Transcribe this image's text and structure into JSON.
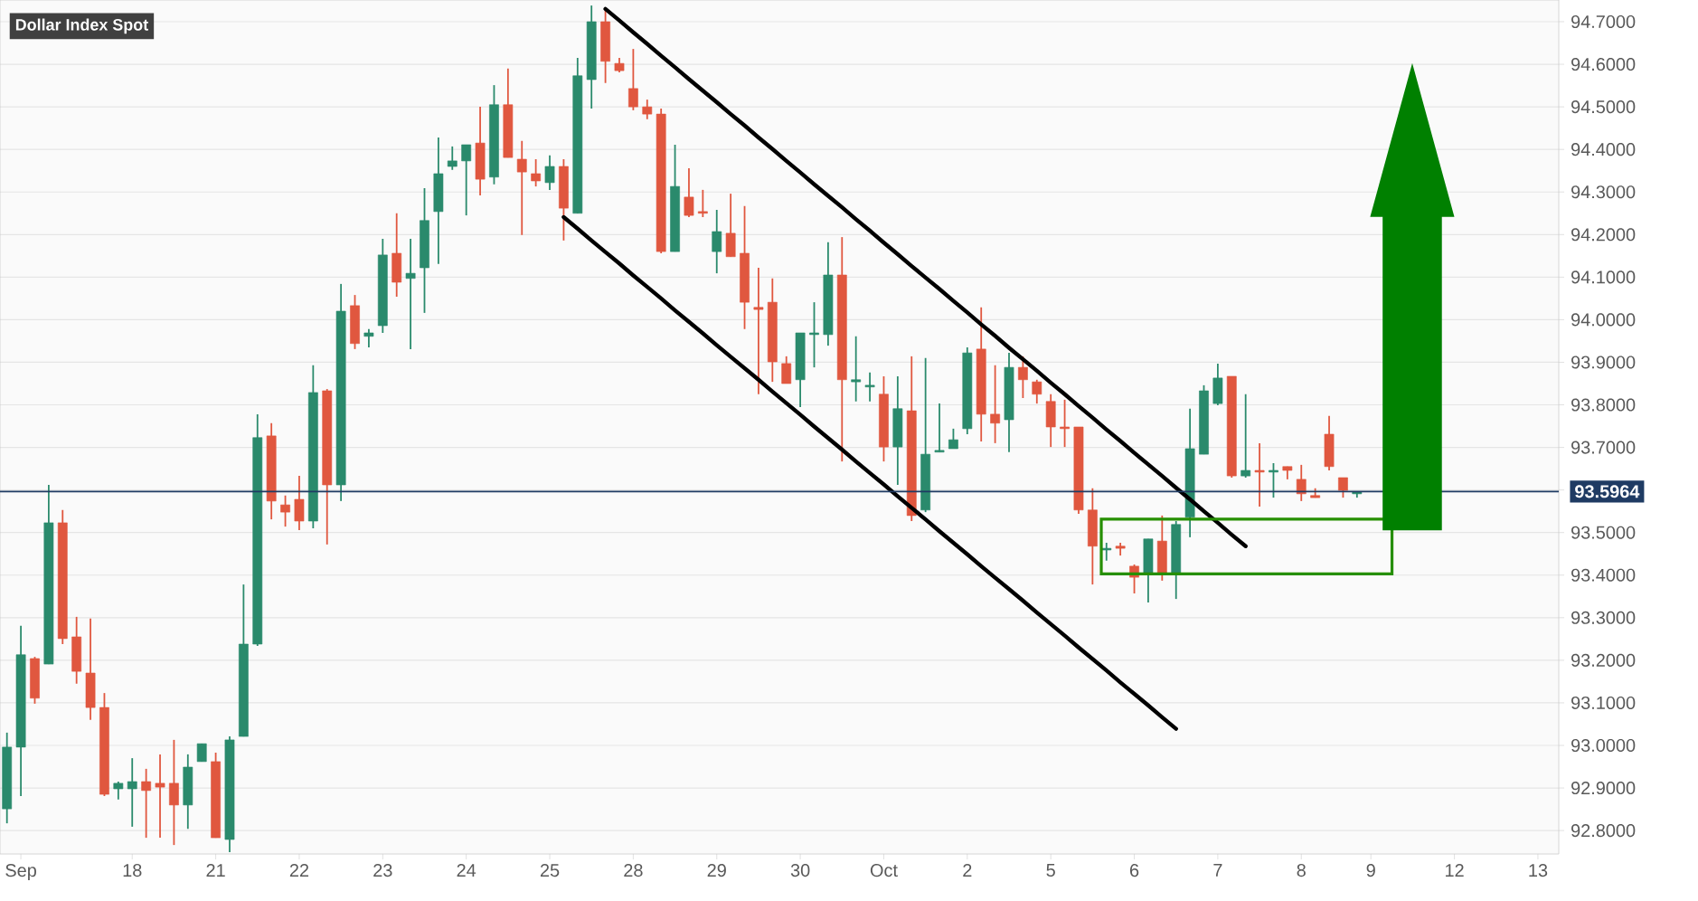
{
  "chart_data": {
    "type": "candlestick",
    "title": "Dollar Index Spot",
    "categories": [
      null,
      "Sep",
      null,
      null,
      null,
      null,
      null,
      null,
      null,
      "18",
      null,
      null,
      null,
      null,
      null,
      "21",
      null,
      null,
      null,
      null,
      null,
      "22",
      null,
      null,
      null,
      null,
      null,
      "23",
      null,
      null,
      null,
      null,
      null,
      "24",
      null,
      null,
      null,
      null,
      null,
      "25",
      null,
      null,
      null,
      null,
      null,
      "28",
      null,
      null,
      null,
      null,
      null,
      "29",
      null,
      null,
      null,
      null,
      null,
      "30",
      null,
      null,
      null,
      null,
      null,
      "Oct",
      null,
      null,
      null,
      null,
      null,
      "2",
      null,
      null,
      null,
      null,
      null,
      "5",
      null,
      null,
      null,
      null,
      null,
      "6",
      null,
      null,
      null,
      null,
      null,
      "7",
      null,
      null,
      null,
      null,
      null,
      "8",
      null,
      null,
      null,
      null,
      "9",
      null,
      null,
      null,
      null,
      null,
      "12",
      null,
      null,
      null,
      null,
      null,
      "13",
      null
    ],
    "ylim": [
      92.745,
      94.751
    ],
    "yticks": [
      {
        "value": 92.8,
        "label": "92.8000"
      },
      {
        "value": 92.9,
        "label": "92.9000"
      },
      {
        "value": 93.0,
        "label": "93.0000"
      },
      {
        "value": 93.1,
        "label": "93.1000"
      },
      {
        "value": 93.2,
        "label": "93.2000"
      },
      {
        "value": 93.3,
        "label": "93.3000"
      },
      {
        "value": 93.4,
        "label": "93.4000"
      },
      {
        "value": 93.5,
        "label": "93.5000"
      },
      {
        "value": 93.6,
        "label": null
      },
      {
        "value": 93.7,
        "label": "93.7000"
      },
      {
        "value": 93.8,
        "label": "93.8000"
      },
      {
        "value": 93.9,
        "label": "93.9000"
      },
      {
        "value": 94.0,
        "label": "94.0000"
      },
      {
        "value": 94.1,
        "label": "94.1000"
      },
      {
        "value": 94.2,
        "label": "94.2000"
      },
      {
        "value": 94.3,
        "label": "94.3000"
      },
      {
        "value": 94.4,
        "label": "94.4000"
      },
      {
        "value": 94.5,
        "label": "94.5000"
      },
      {
        "value": 94.6,
        "label": "94.6000"
      },
      {
        "value": 94.7,
        "label": "94.7000"
      }
    ],
    "grid": "y",
    "series": [
      {
        "type": "line",
        "color": "#000000",
        "values": [
          null,
          null,
          null,
          null,
          null,
          null,
          null,
          null,
          null,
          null,
          null,
          null,
          null,
          null,
          null,
          null,
          null,
          null,
          null,
          null,
          null,
          null,
          null,
          null,
          null,
          null,
          null,
          null,
          null,
          null,
          null,
          null,
          null,
          null,
          null,
          null,
          null,
          null,
          null,
          null,
          null,
          null,
          null,
          94.73,
          94.703,
          94.675,
          94.648,
          94.62,
          94.593,
          94.565,
          94.538,
          94.511,
          94.483,
          94.456,
          94.428,
          94.401,
          94.373,
          94.346,
          94.318,
          94.291,
          94.264,
          94.236,
          94.209,
          94.181,
          94.154,
          94.126,
          94.099,
          94.072,
          94.044,
          94.017,
          93.989,
          93.962,
          93.934,
          93.907,
          93.88,
          93.852,
          93.825,
          93.797,
          93.77,
          93.742,
          93.715,
          93.687,
          93.66,
          93.633,
          93.605,
          93.578,
          93.55,
          93.523,
          93.495,
          93.468,
          null,
          null,
          null,
          null,
          null,
          null,
          null,
          null,
          null,
          null,
          null,
          null,
          null,
          null,
          null,
          null,
          null,
          null,
          null,
          null,
          null,
          null
        ]
      },
      {
        "type": "line",
        "color": "#000000",
        "values": [
          null,
          null,
          null,
          null,
          null,
          null,
          null,
          null,
          null,
          null,
          null,
          null,
          null,
          null,
          null,
          null,
          null,
          null,
          null,
          null,
          null,
          null,
          null,
          null,
          null,
          null,
          null,
          null,
          null,
          null,
          null,
          null,
          null,
          null,
          null,
          null,
          null,
          null,
          null,
          null,
          94.241,
          94.214,
          94.186,
          94.159,
          94.132,
          94.104,
          94.077,
          94.05,
          94.022,
          93.995,
          93.968,
          93.94,
          93.913,
          93.886,
          93.859,
          93.831,
          93.804,
          93.777,
          93.749,
          93.722,
          93.695,
          93.667,
          93.64,
          93.613,
          93.585,
          93.558,
          93.531,
          93.503,
          93.476,
          93.449,
          93.421,
          93.394,
          93.367,
          93.34,
          93.312,
          93.285,
          93.258,
          93.23,
          93.203,
          93.176,
          93.148,
          93.121,
          93.094,
          93.066,
          93.039,
          null,
          null,
          null,
          null,
          null,
          null,
          null,
          null,
          null,
          null,
          null,
          null,
          null,
          null,
          null,
          null,
          null,
          null,
          null,
          null,
          null,
          null,
          null,
          null,
          null,
          null,
          null
        ]
      }
    ],
    "ref_lines": [
      {
        "axis": "y",
        "value": 93.5964,
        "label": "93.5964",
        "color": "#1f3b63"
      }
    ],
    "ohlc": [
      [
        92.851,
        93.03,
        92.817,
        92.996
      ],
      [
        92.996,
        93.281,
        92.881,
        93.213
      ],
      [
        93.204,
        93.208,
        93.098,
        93.111
      ],
      [
        93.191,
        93.612,
        93.191,
        93.523
      ],
      [
        93.523,
        93.553,
        93.238,
        93.251
      ],
      [
        93.255,
        93.302,
        93.145,
        93.174
      ],
      [
        93.17,
        93.298,
        93.06,
        93.089
      ],
      [
        93.089,
        93.123,
        92.881,
        92.885
      ],
      [
        92.898,
        92.915,
        92.873,
        92.911
      ],
      [
        92.898,
        92.97,
        92.809,
        92.915
      ],
      [
        92.915,
        92.945,
        92.783,
        92.894
      ],
      [
        92.911,
        92.979,
        92.783,
        92.902
      ],
      [
        92.911,
        93.013,
        92.766,
        92.86
      ],
      [
        92.86,
        92.979,
        92.804,
        92.949
      ],
      [
        92.962,
        93.004,
        92.962,
        93.004
      ],
      [
        92.962,
        92.983,
        92.783,
        92.783
      ],
      [
        92.779,
        93.021,
        92.749,
        93.013
      ],
      [
        93.021,
        93.378,
        93.021,
        93.238
      ],
      [
        93.238,
        93.778,
        93.234,
        93.723
      ],
      [
        93.727,
        93.757,
        93.531,
        93.574
      ],
      [
        93.565,
        93.587,
        93.514,
        93.548
      ],
      [
        93.578,
        93.633,
        93.506,
        93.527
      ],
      [
        93.527,
        93.893,
        93.51,
        93.829
      ],
      [
        93.833,
        93.837,
        93.472,
        93.612
      ],
      [
        93.612,
        94.084,
        93.574,
        94.02
      ],
      [
        94.033,
        94.058,
        93.931,
        93.944
      ],
      [
        93.961,
        93.978,
        93.935,
        93.969
      ],
      [
        93.986,
        94.19,
        93.969,
        94.152
      ],
      [
        94.156,
        94.25,
        94.054,
        94.088
      ],
      [
        94.097,
        94.19,
        93.931,
        94.109
      ],
      [
        94.122,
        94.309,
        94.016,
        94.233
      ],
      [
        94.254,
        94.428,
        94.131,
        94.343
      ],
      [
        94.36,
        94.407,
        94.352,
        94.373
      ],
      [
        94.373,
        94.411,
        94.245,
        94.411
      ],
      [
        94.415,
        94.5,
        94.292,
        94.33
      ],
      [
        94.335,
        94.551,
        94.318,
        94.505
      ],
      [
        94.505,
        94.59,
        94.381,
        94.381
      ],
      [
        94.377,
        94.42,
        94.199,
        94.347
      ],
      [
        94.343,
        94.377,
        94.313,
        94.326
      ],
      [
        94.322,
        94.386,
        94.305,
        94.36
      ],
      [
        94.36,
        94.377,
        94.186,
        94.262
      ],
      [
        94.25,
        94.615,
        94.25,
        94.573
      ],
      [
        94.564,
        94.738,
        94.496,
        94.7
      ],
      [
        94.7,
        94.73,
        94.556,
        94.607
      ],
      [
        94.602,
        94.615,
        94.581,
        94.585
      ],
      [
        94.543,
        94.636,
        94.492,
        94.5
      ],
      [
        94.5,
        94.517,
        94.471,
        94.483
      ],
      [
        94.483,
        94.496,
        94.156,
        94.16
      ],
      [
        94.16,
        94.411,
        94.16,
        94.313
      ],
      [
        94.288,
        94.356,
        94.241,
        94.245
      ],
      [
        94.254,
        94.305,
        94.241,
        94.25
      ],
      [
        94.16,
        94.258,
        94.109,
        94.207
      ],
      [
        94.203,
        94.296,
        94.148,
        94.148
      ],
      [
        94.156,
        94.267,
        93.978,
        94.041
      ],
      [
        94.029,
        94.122,
        93.825,
        94.024
      ],
      [
        94.041,
        94.097,
        93.854,
        93.901
      ],
      [
        93.897,
        93.914,
        93.85,
        93.85
      ],
      [
        93.859,
        93.969,
        93.795,
        93.969
      ],
      [
        93.965,
        94.041,
        93.888,
        93.969
      ],
      [
        93.965,
        94.182,
        93.939,
        94.105
      ],
      [
        94.105,
        94.194,
        93.667,
        93.859
      ],
      [
        93.854,
        93.961,
        93.808,
        93.859
      ],
      [
        93.842,
        93.876,
        93.808,
        93.846
      ],
      [
        93.825,
        93.867,
        93.667,
        93.701
      ],
      [
        93.701,
        93.867,
        93.612,
        93.791
      ],
      [
        93.786,
        93.914,
        93.527,
        93.54
      ],
      [
        93.553,
        93.91,
        93.548,
        93.684
      ],
      [
        93.689,
        93.803,
        93.689,
        93.693
      ],
      [
        93.697,
        93.744,
        93.697,
        93.718
      ],
      [
        93.744,
        93.935,
        93.731,
        93.922
      ],
      [
        93.931,
        94.029,
        93.714,
        93.778
      ],
      [
        93.778,
        93.893,
        93.71,
        93.757
      ],
      [
        93.765,
        93.922,
        93.689,
        93.888
      ],
      [
        93.888,
        93.914,
        93.816,
        93.859
      ],
      [
        93.854,
        93.859,
        93.803,
        93.825
      ],
      [
        93.808,
        93.825,
        93.701,
        93.748
      ],
      [
        93.748,
        93.812,
        93.701,
        93.744
      ],
      [
        93.748,
        93.748,
        93.544,
        93.553
      ],
      [
        93.553,
        93.604,
        93.378,
        93.468
      ],
      [
        93.459,
        93.476,
        93.434,
        93.463
      ],
      [
        93.468,
        93.476,
        93.446,
        93.463
      ],
      [
        93.421,
        93.425,
        93.357,
        93.395
      ],
      [
        93.404,
        93.485,
        93.336,
        93.485
      ],
      [
        93.48,
        93.54,
        93.387,
        93.404
      ],
      [
        93.404,
        93.527,
        93.344,
        93.519
      ],
      [
        93.536,
        93.791,
        93.489,
        93.697
      ],
      [
        93.684,
        93.846,
        93.684,
        93.833
      ],
      [
        93.803,
        93.897,
        93.799,
        93.863
      ],
      [
        93.867,
        93.867,
        93.629,
        93.633
      ],
      [
        93.633,
        93.825,
        93.629,
        93.646
      ],
      [
        93.646,
        93.71,
        93.561,
        93.642
      ],
      [
        93.642,
        93.663,
        93.582,
        93.646
      ],
      [
        93.655,
        93.655,
        93.625,
        93.646
      ],
      [
        93.625,
        93.659,
        93.574,
        93.591
      ],
      [
        93.587,
        93.604,
        93.582,
        93.582
      ],
      [
        93.731,
        93.774,
        93.646,
        93.655
      ],
      [
        93.629,
        93.629,
        93.582,
        93.599
      ],
      [
        93.591,
        93.595,
        93.582,
        93.595
      ],
      null,
      null,
      null,
      null,
      null,
      null,
      null,
      null,
      null,
      null,
      null,
      null,
      null,
      null
    ],
    "colors": [
      "#2a8a6c",
      "#2a8a6c",
      "#e0573f",
      "#2a8a6c",
      "#e0573f",
      "#e0573f",
      "#e0573f",
      "#e0573f",
      "#2a8a6c",
      "#2a8a6c",
      "#e0573f",
      "#e0573f",
      "#e0573f",
      "#2a8a6c",
      "#2a8a6c",
      "#e0573f",
      "#2a8a6c",
      "#2a8a6c",
      "#2a8a6c",
      "#e0573f",
      "#e0573f",
      "#e0573f",
      "#2a8a6c",
      "#e0573f",
      "#2a8a6c",
      "#e0573f",
      "#2a8a6c",
      "#2a8a6c",
      "#e0573f",
      "#2a8a6c",
      "#2a8a6c",
      "#2a8a6c",
      "#2a8a6c",
      "#2a8a6c",
      "#e0573f",
      "#2a8a6c",
      "#e0573f",
      "#e0573f",
      "#e0573f",
      "#2a8a6c",
      "#e0573f",
      "#2a8a6c",
      "#2a8a6c",
      "#e0573f",
      "#e0573f",
      "#e0573f",
      "#e0573f",
      "#e0573f",
      "#2a8a6c",
      "#e0573f",
      "#e0573f",
      "#2a8a6c",
      "#e0573f",
      "#e0573f",
      "#e0573f",
      "#e0573f",
      "#e0573f",
      "#2a8a6c",
      "#2a8a6c",
      "#2a8a6c",
      "#e0573f",
      "#2a8a6c",
      "#2a8a6c",
      "#e0573f",
      "#2a8a6c",
      "#e0573f",
      "#2a8a6c",
      "#2a8a6c",
      "#2a8a6c",
      "#2a8a6c",
      "#e0573f",
      "#e0573f",
      "#2a8a6c",
      "#e0573f",
      "#e0573f",
      "#e0573f",
      "#e0573f",
      "#e0573f",
      "#e0573f",
      "#2a8a6c",
      "#e0573f",
      "#e0573f",
      "#2a8a6c",
      "#e0573f",
      "#2a8a6c",
      "#2a8a6c",
      "#2a8a6c",
      "#2a8a6c",
      "#e0573f",
      "#2a8a6c",
      "#e0573f",
      "#2a8a6c",
      "#e0573f",
      "#e0573f",
      "#e0573f",
      "#e0573f",
      "#e0573f",
      "#2a8a6c",
      null,
      null,
      null,
      null,
      null,
      null,
      null,
      null,
      null,
      null,
      null,
      null,
      null,
      null
    ]
  }
}
